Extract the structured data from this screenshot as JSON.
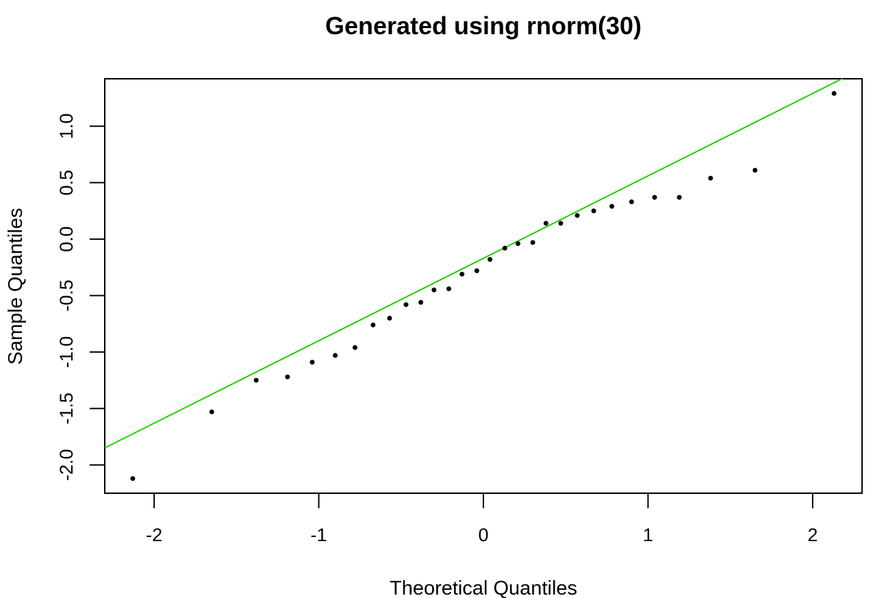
{
  "chart_data": {
    "type": "scatter",
    "title": "Generated using rnorm(30)",
    "xlabel": "Theoretical Quantiles",
    "ylabel": "Sample Quantiles",
    "xlim": [
      -2.3,
      2.3
    ],
    "ylim": [
      -2.25,
      1.42
    ],
    "x_ticks": [
      -2,
      -1,
      0,
      1,
      2
    ],
    "x_tick_labels": [
      "-2",
      "-1",
      "0",
      "1",
      "2"
    ],
    "y_ticks": [
      -2.0,
      -1.5,
      -1.0,
      -0.5,
      0.0,
      0.5,
      1.0
    ],
    "y_tick_labels": [
      "-2.0",
      "-1.5",
      "-1.0",
      "-0.5",
      "0.0",
      "0.5",
      "1.0"
    ],
    "grid": false,
    "points": {
      "x": [
        -2.13,
        -1.65,
        -1.38,
        -1.19,
        -1.04,
        -0.9,
        -0.78,
        -0.67,
        -0.57,
        -0.47,
        -0.38,
        -0.3,
        -0.21,
        -0.13,
        -0.04,
        0.04,
        0.13,
        0.21,
        0.3,
        0.38,
        0.47,
        0.57,
        0.67,
        0.78,
        0.9,
        1.04,
        1.19,
        1.38,
        1.65,
        2.13
      ],
      "y": [
        -2.12,
        -1.53,
        -1.25,
        -1.22,
        -1.09,
        -1.03,
        -0.96,
        -0.76,
        -0.7,
        -0.58,
        -0.56,
        -0.45,
        -0.44,
        -0.31,
        -0.28,
        -0.18,
        -0.08,
        -0.04,
        -0.03,
        0.14,
        0.14,
        0.21,
        0.25,
        0.29,
        0.33,
        0.37,
        0.37,
        0.54,
        0.61,
        1.29
      ],
      "color": "#000000"
    },
    "reference_line": {
      "intercept": -0.17,
      "slope": 0.73,
      "color": "#22cc00"
    }
  }
}
